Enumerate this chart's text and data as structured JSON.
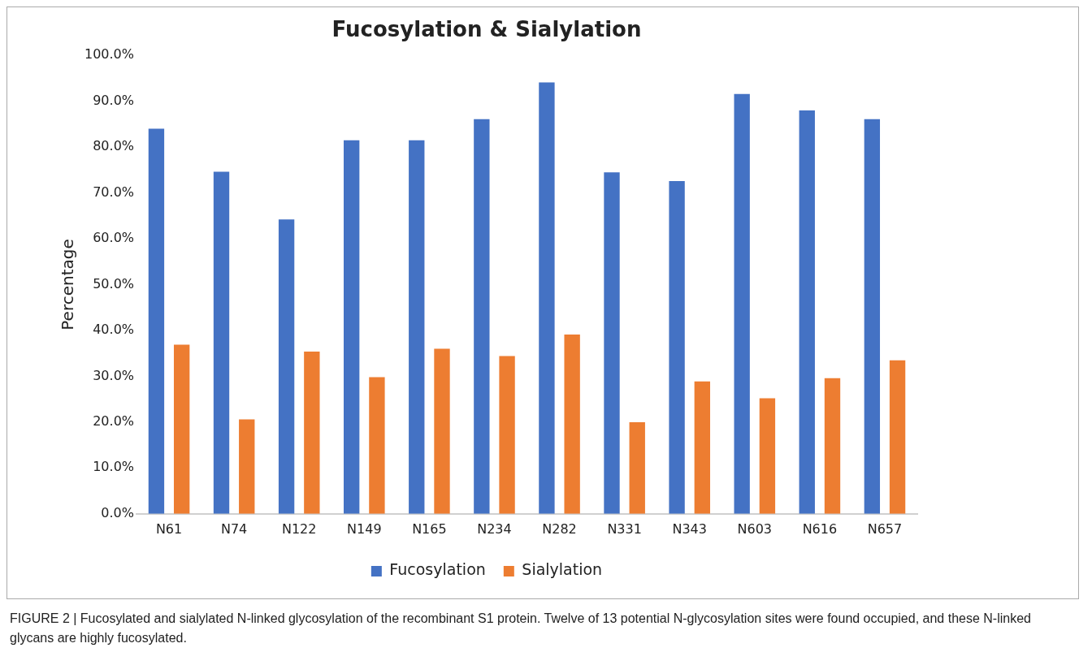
{
  "chart_data": {
    "type": "bar",
    "title": "Fucosylation & Sialylation",
    "ylabel": "Percentage",
    "categories": [
      "N61",
      "N74",
      "N122",
      "N149",
      "N165",
      "N234",
      "N282",
      "N331",
      "N343",
      "N603",
      "N616",
      "N657"
    ],
    "series": [
      {
        "name": "Fucosylation",
        "color": "#4472c4",
        "values": [
          84.0,
          74.6,
          64.2,
          81.5,
          81.5,
          86.1,
          94.1,
          74.5,
          72.6,
          91.6,
          88.0,
          86.1
        ]
      },
      {
        "name": "Sialylation",
        "color": "#ed7d31",
        "values": [
          36.9,
          20.6,
          35.4,
          29.8,
          36.0,
          34.4,
          39.1,
          20.0,
          28.9,
          25.2,
          29.6,
          33.5
        ]
      }
    ],
    "ylim": [
      0,
      100
    ],
    "yticks": [
      {
        "value": 0,
        "label": "0.0%"
      },
      {
        "value": 10,
        "label": "10.0%"
      },
      {
        "value": 20,
        "label": "20.0%"
      },
      {
        "value": 30,
        "label": "30.0%"
      },
      {
        "value": 40,
        "label": "40.0%"
      },
      {
        "value": 50,
        "label": "50.0%"
      },
      {
        "value": 60,
        "label": "60.0%"
      },
      {
        "value": 70,
        "label": "70.0%"
      },
      {
        "value": 80,
        "label": "80.0%"
      },
      {
        "value": 90,
        "label": "90.0%"
      },
      {
        "value": 100,
        "label": "100.0%"
      }
    ],
    "grid": false,
    "legend": "bottom",
    "annotations": [
      "FIGURE 2 | Fucosylated and sialylated N-linked glycosylation of the recombinant S1 protein. Twelve of 13 potential N-glycosylation sites were found occupied, and these N-linked glycans are highly fucosylated."
    ]
  }
}
